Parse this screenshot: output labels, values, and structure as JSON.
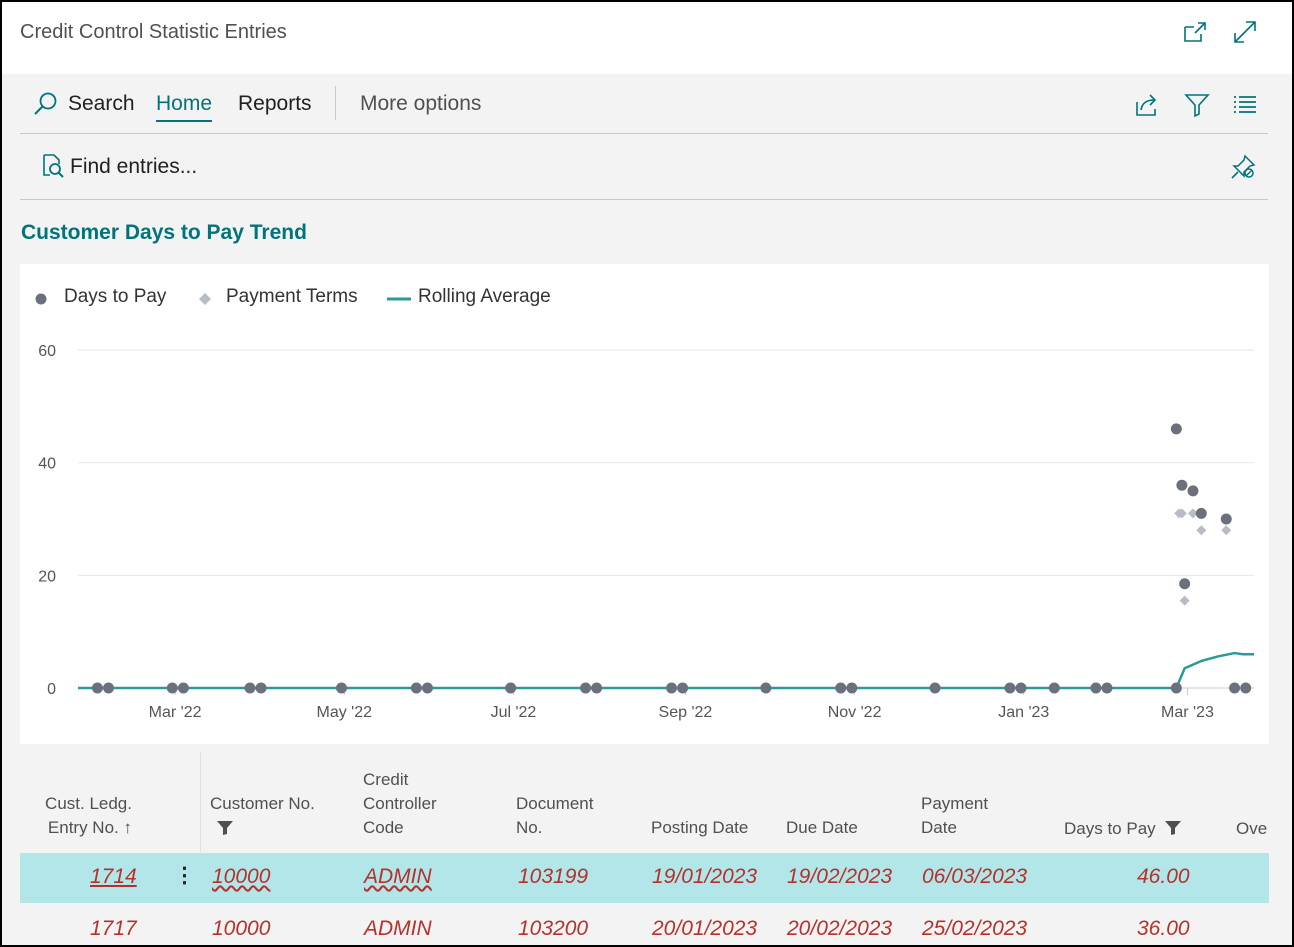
{
  "window": {
    "title": "Credit Control Statistic Entries"
  },
  "actionbar": {
    "search_label": "Search",
    "home_label": "Home",
    "reports_label": "Reports",
    "more_label": "More options"
  },
  "promoted": {
    "find_label": "Find entries..."
  },
  "chart_section": {
    "title": "Customer Days to Pay Trend"
  },
  "colors": {
    "accent": "#00747a",
    "days_to_pay": "#6b717c",
    "payment_terms": "#b8bcc4",
    "rolling_avg": "#2a9a97",
    "selected_row": "#b2e6e8",
    "negative_text": "#b7312c"
  },
  "chart_data": {
    "type": "line",
    "legend": {
      "placement": "top-left",
      "items": [
        "Days to Pay",
        "Payment Terms",
        "Rolling Average"
      ]
    },
    "y_ticks": [
      "0",
      "20",
      "40",
      "60"
    ],
    "ylim": [
      0,
      60
    ],
    "x_ticks": [
      "Mar '22",
      "May '22",
      "Jul '22",
      "Sep '22",
      "Nov '22",
      "Jan '23",
      "Mar '23"
    ],
    "xlim": [
      "2022-01-25",
      "2023-03-25"
    ],
    "grid": true,
    "series": [
      {
        "name": "Days to Pay",
        "kind": "scatter",
        "points": [
          [
            "2022-02-01",
            0
          ],
          [
            "2022-02-05",
            0
          ],
          [
            "2022-02-28",
            0
          ],
          [
            "2022-03-04",
            0
          ],
          [
            "2022-03-28",
            0
          ],
          [
            "2022-04-01",
            0
          ],
          [
            "2022-04-30",
            0
          ],
          [
            "2022-05-27",
            0
          ],
          [
            "2022-05-31",
            0
          ],
          [
            "2022-06-30",
            0
          ],
          [
            "2022-07-27",
            0
          ],
          [
            "2022-07-31",
            0
          ],
          [
            "2022-08-27",
            0
          ],
          [
            "2022-08-31",
            0
          ],
          [
            "2022-09-30",
            0
          ],
          [
            "2022-10-27",
            0
          ],
          [
            "2022-10-31",
            0
          ],
          [
            "2022-11-30",
            0
          ],
          [
            "2022-12-27",
            0
          ],
          [
            "2022-12-31",
            0
          ],
          [
            "2023-01-12",
            0
          ],
          [
            "2023-01-27",
            0
          ],
          [
            "2023-01-31",
            0
          ],
          [
            "2023-02-25",
            0
          ],
          [
            "2023-02-25",
            46
          ],
          [
            "2023-02-27",
            36
          ],
          [
            "2023-02-28",
            18.5
          ],
          [
            "2023-03-03",
            35
          ],
          [
            "2023-03-06",
            31
          ],
          [
            "2023-03-15",
            30
          ],
          [
            "2023-03-18",
            0
          ],
          [
            "2023-03-22",
            0
          ]
        ]
      },
      {
        "name": "Payment Terms",
        "kind": "scatter",
        "points": [
          [
            "2023-02-26",
            31
          ],
          [
            "2023-02-27",
            31
          ],
          [
            "2023-02-28",
            15.5
          ],
          [
            "2023-03-03",
            31
          ],
          [
            "2023-03-06",
            28
          ],
          [
            "2023-03-15",
            28
          ]
        ]
      },
      {
        "name": "Rolling Average",
        "kind": "line",
        "points": [
          [
            "2022-01-25",
            0
          ],
          [
            "2023-02-25",
            0
          ],
          [
            "2023-02-28",
            3.5
          ],
          [
            "2023-03-06",
            4.8
          ],
          [
            "2023-03-12",
            5.6
          ],
          [
            "2023-03-18",
            6.2
          ],
          [
            "2023-03-21",
            6.0
          ],
          [
            "2023-03-25",
            6.0
          ]
        ]
      }
    ]
  },
  "table": {
    "headers": {
      "entry_no": [
        "Cust. Ledg.",
        "Entry No. ↑"
      ],
      "customer_no": "Customer No.",
      "controller": [
        "Credit",
        "Controller",
        "Code"
      ],
      "document_no": [
        "Document",
        "No."
      ],
      "posting_date": "Posting Date",
      "due_date": "Due Date",
      "payment_date": [
        "Payment",
        "Date"
      ],
      "days_to_pay": "Days to Pay",
      "overdue": "Ove"
    },
    "rows": [
      {
        "entry_no": "1714",
        "customer_no": "10000",
        "controller": "ADMIN",
        "document_no": "103199",
        "posting_date": "19/01/2023",
        "due_date": "19/02/2023",
        "payment_date": "06/03/2023",
        "days_to_pay": "46.00"
      },
      {
        "entry_no": "1717",
        "customer_no": "10000",
        "controller": "ADMIN",
        "document_no": "103200",
        "posting_date": "20/01/2023",
        "due_date": "20/02/2023",
        "payment_date": "25/02/2023",
        "days_to_pay": "36.00"
      }
    ]
  }
}
